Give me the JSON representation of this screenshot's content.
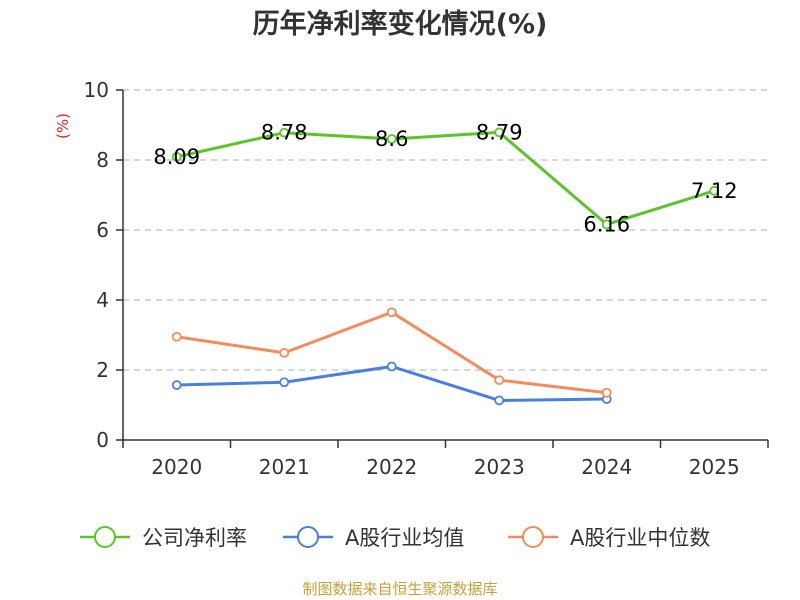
{
  "chart_data": {
    "type": "line",
    "title": "历年净利率变化情况(%)",
    "ylabel": "(%)",
    "xlabel": "",
    "categories": [
      "2020",
      "2021",
      "2022",
      "2023",
      "2024",
      "2025"
    ],
    "ylim": [
      0,
      10
    ],
    "yticks": [
      0,
      2,
      4,
      6,
      8,
      10
    ],
    "grid": "horizontal dashed",
    "legend_position": "bottom",
    "series": [
      {
        "name": "公司净利率",
        "color": "#5cc42b",
        "values": [
          8.09,
          8.78,
          8.6,
          8.79,
          6.16,
          7.12
        ],
        "show_labels": true
      },
      {
        "name": "A股行业均值",
        "color": "#4a7fdc",
        "values": [
          1.57,
          1.65,
          2.1,
          1.13,
          1.17,
          null
        ],
        "show_labels": false
      },
      {
        "name": "A股行业中位数",
        "color": "#f48b5c",
        "values": [
          2.95,
          2.49,
          3.65,
          1.71,
          1.35,
          null
        ],
        "show_labels": false
      }
    ],
    "ylabel_color": "#e02020",
    "source_text": "制图数据来自恒生聚源数据库",
    "source_color": "#c8a03c"
  }
}
